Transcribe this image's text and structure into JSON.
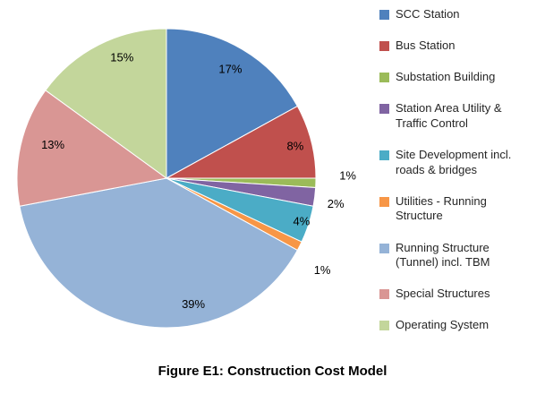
{
  "caption": "Figure E1: Construction Cost Model",
  "chart_data": {
    "type": "pie",
    "title": "",
    "start_angle_deg": 0,
    "direction": "clockwise",
    "legend_position": "right",
    "grid": false,
    "series": [
      {
        "label": "SCC Station",
        "value": 17,
        "color": "#4F81BD"
      },
      {
        "label": "Bus Station",
        "value": 8,
        "color": "#C0504D"
      },
      {
        "label": "Substation Building",
        "value": 1,
        "color": "#9BBB59"
      },
      {
        "label": "Station Area Utility & Traffic Control",
        "value": 2,
        "color": "#8064A2"
      },
      {
        "label": "Site Development incl. roads & bridges",
        "value": 4,
        "color": "#4BACC6"
      },
      {
        "label": "Utilities - Running Structure",
        "value": 1,
        "color": "#F79646"
      },
      {
        "label": "Running Structure (Tunnel) incl. TBM",
        "value": 39,
        "color": "#95B3D7"
      },
      {
        "label": "Special Structures",
        "value": 13,
        "color": "#D99694"
      },
      {
        "label": "Operating System",
        "value": 15,
        "color": "#C3D69B"
      }
    ],
    "data_labels": [
      "17%",
      "8%",
      "1%",
      "2%",
      "4%",
      "1%",
      "39%",
      "13%",
      "15%"
    ]
  }
}
